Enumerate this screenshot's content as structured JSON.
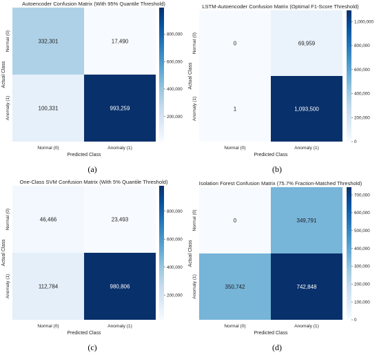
{
  "captions": [
    "(a)",
    "(b)",
    "(c)",
    "(d)"
  ],
  "chart_data": [
    {
      "type": "heatmap",
      "title": "Autoencoder Confusion Matrix (With 95% Quantile Threshold)",
      "xlabel": "Predicted Class",
      "ylabel": "Actual Class",
      "x_categories": [
        "Normal (0)",
        "Anomaly (1)"
      ],
      "y_categories": [
        "Normal (0)",
        "Anomaly (1)"
      ],
      "values": [
        [
          332301,
          17490
        ],
        [
          100331,
          993259
        ]
      ],
      "cell_labels": [
        [
          "332,301",
          "17,490"
        ],
        [
          "100,331",
          "993,259"
        ]
      ],
      "colormap": "Blues",
      "colorbar": {
        "range": [
          17490,
          993259
        ],
        "ticks": [
          200000,
          400000,
          600000,
          800000
        ],
        "tick_labels": [
          "200,000",
          "400,000",
          "600,000",
          "800,000"
        ]
      }
    },
    {
      "type": "heatmap",
      "title": "LSTM-Autoencoder Confusion Matrix (Optimal F1-Score Threshold)",
      "xlabel": "Predicted Class",
      "ylabel": "Actual Class",
      "x_categories": [
        "Normal (0)",
        "Anomaly (1)"
      ],
      "y_categories": [
        "Normal (0)",
        "Anomaly (1)"
      ],
      "values": [
        [
          0,
          69959
        ],
        [
          1,
          1093500
        ]
      ],
      "cell_labels": [
        [
          "0",
          "69,959"
        ],
        [
          "1",
          "1,093,500"
        ]
      ],
      "colormap": "Blues",
      "colorbar": {
        "range": [
          0,
          1093500
        ],
        "ticks": [
          0,
          200000,
          400000,
          600000,
          800000,
          1000000
        ],
        "tick_labels": [
          "0",
          "200,000",
          "400,000",
          "600,000",
          "800,000",
          "1,000,000"
        ]
      }
    },
    {
      "type": "heatmap",
      "title": "One-Class SVM Confusion Matrix (With 5% Quantile Threshold)",
      "xlabel": "Predicted Class",
      "ylabel": "Actual Class",
      "x_categories": [
        "Normal (0)",
        "Anomaly (1)"
      ],
      "y_categories": [
        "Normal (0)",
        "Anomaly (1)"
      ],
      "values": [
        [
          46466,
          23493
        ],
        [
          112784,
          980806
        ]
      ],
      "cell_labels": [
        [
          "46,466",
          "23,493"
        ],
        [
          "112,784",
          "980,806"
        ]
      ],
      "colormap": "Blues",
      "colorbar": {
        "range": [
          23493,
          980806
        ],
        "ticks": [
          200000,
          400000,
          600000,
          800000
        ],
        "tick_labels": [
          "200,000",
          "400,000",
          "600,000",
          "800,000"
        ]
      }
    },
    {
      "type": "heatmap",
      "title": "Isolation Forest Confusion Matrix (75.7% Fraction-Matched Threshold)",
      "xlabel": "Predicted Class",
      "ylabel": "Actual Class",
      "x_categories": [
        "Normal (0)",
        "Anomaly (1)"
      ],
      "y_categories": [
        "Normal (0)",
        "Anomaly (1)"
      ],
      "values": [
        [
          0,
          349791
        ],
        [
          350742,
          742848
        ]
      ],
      "cell_labels": [
        [
          "0",
          "349,791"
        ],
        [
          "350,742",
          "742,848"
        ]
      ],
      "colormap": "Blues",
      "colorbar": {
        "range": [
          0,
          742848
        ],
        "ticks": [
          0,
          100000,
          200000,
          300000,
          400000,
          500000,
          600000,
          700000
        ],
        "tick_labels": [
          "0",
          "100,000",
          "200,000",
          "300,000",
          "400,000",
          "500,000",
          "600,000",
          "700,000"
        ]
      }
    }
  ]
}
